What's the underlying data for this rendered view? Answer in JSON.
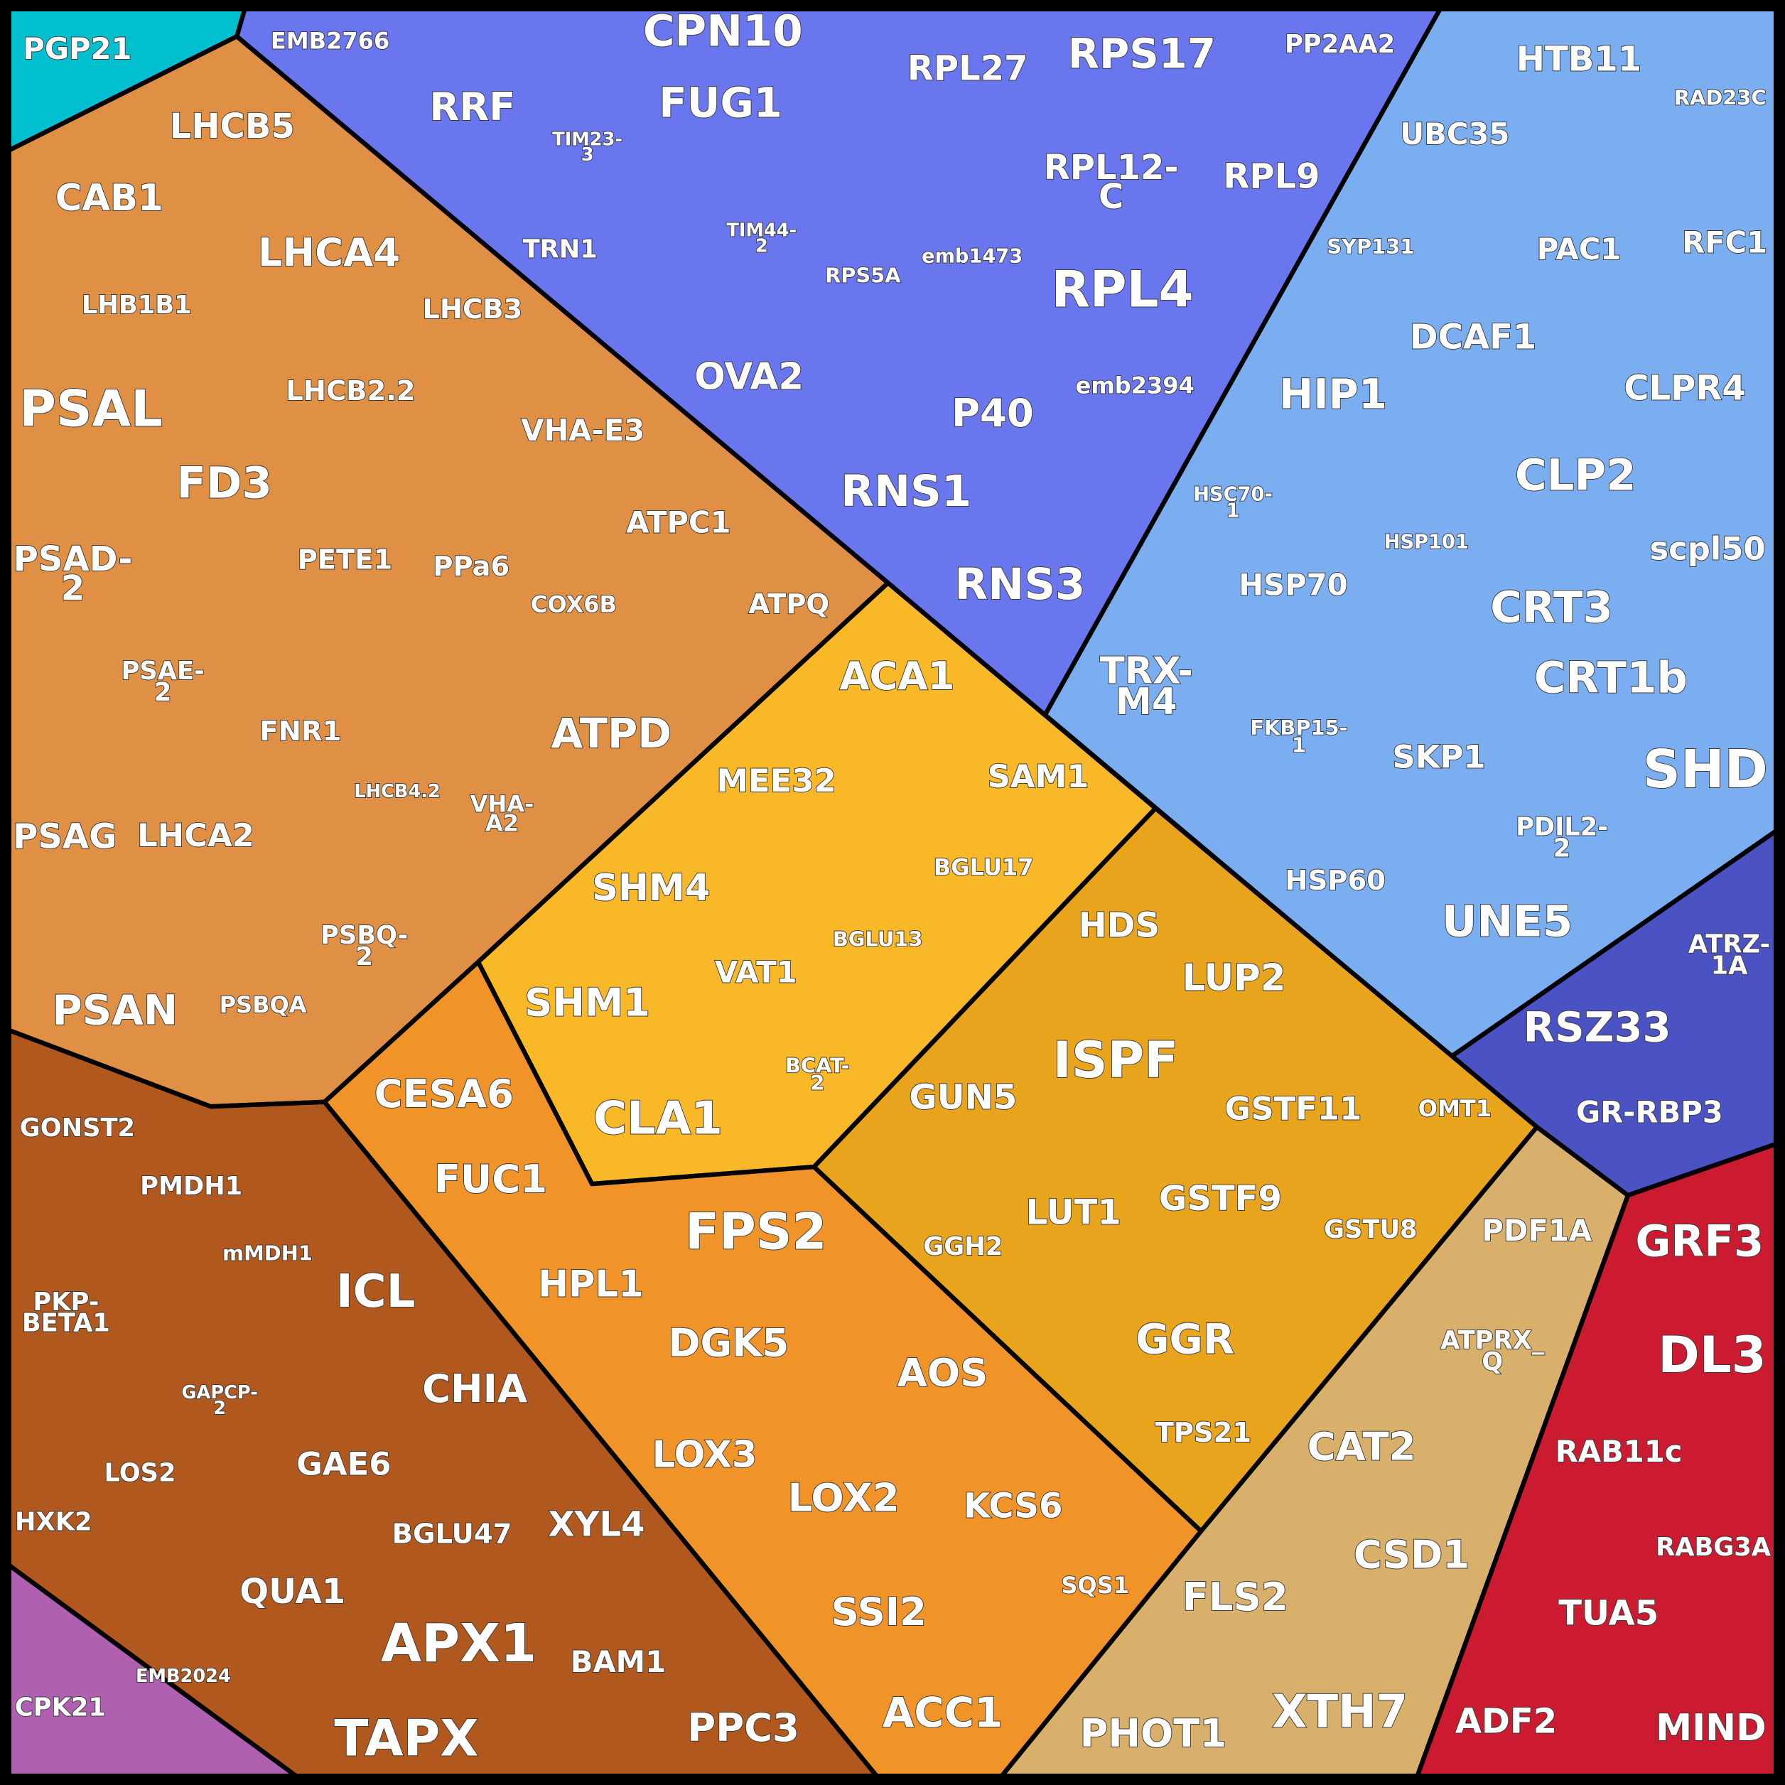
{
  "cells": [
    "PGP21",
    "EMB2766",
    "RRF",
    "CPN10",
    "FUG1",
    "TIM23-3",
    "TRN1",
    "TIM44-2",
    "OVA2",
    "RPL27",
    "RPS17",
    "PP2AA2",
    "RPL12-C",
    "RPL9",
    "RPS5A",
    "emb1473",
    "RPL4",
    "emb2394",
    "P40",
    "RNS1",
    "RNS3",
    "HTB11",
    "RAD23C",
    "UBC35",
    "SYP131",
    "PAC1",
    "RFC1",
    "DCAF1",
    "HIP1",
    "CLPR4",
    "HSC70-1",
    "HSP101",
    "CLP2",
    "scpl50",
    "HSP70",
    "CRT3",
    "TRX-M4",
    "CRT1b",
    "FKBP15-1",
    "SKP1",
    "SHD",
    "PDIL2-2",
    "HSP60",
    "UNE5",
    "ATRZ-1A",
    "RSZ33",
    "GR-RBP3",
    "GRF3",
    "DL3",
    "RAB11c",
    "RABG3A",
    "TUA5",
    "ADF2",
    "MIND",
    "PDF1A",
    "ATPRX_Q",
    "CAT2",
    "CSD1",
    "FLS2",
    "PHOT1",
    "XTH7",
    "ACA1",
    "SAM1",
    "MEE32",
    "BGLU17",
    "SHM4",
    "BGLU13",
    "VAT1",
    "SHM1",
    "BCAT-2",
    "CLA1",
    "HDS",
    "LUP2",
    "ISPF",
    "GUN5",
    "GSTF11",
    "OMT1",
    "GSTF9",
    "LUT1",
    "GSTU8",
    "GGH2",
    "GGR",
    "TPS21",
    "CESA6",
    "FUC1",
    "FPS2",
    "HPL1",
    "DGK5",
    "AOS",
    "LOX3",
    "LOX2",
    "KCS6",
    "SQS1",
    "SSI2",
    "ACC1",
    "LHCB5",
    "CAB1",
    "LHCA4",
    "LHB1B1",
    "LHCB3",
    "LHCB2.2",
    "PSAL",
    "VHA-E3",
    "FD3",
    "PSAD-2",
    "PETE1",
    "PPa6",
    "ATPC1",
    "COX6B",
    "ATPQ",
    "PSAE-2",
    "FNR1",
    "ATPD",
    "LHCB4.2",
    "VHA-A2",
    "PSAG",
    "LHCA2",
    "PSBQ-2",
    "PSBQA",
    "PSAN",
    "GONST2",
    "PMDH1",
    "mMDH1",
    "ICL",
    "PKP-BETA1",
    "CHIA",
    "GAPCP-2",
    "GAE6",
    "LOS2",
    "HXK2",
    "BGLU47",
    "XYL4",
    "QUA1",
    "APX1",
    "EMB2024",
    "BAM1",
    "CPK21",
    "TAPX",
    "PPC3"
  ]
}
